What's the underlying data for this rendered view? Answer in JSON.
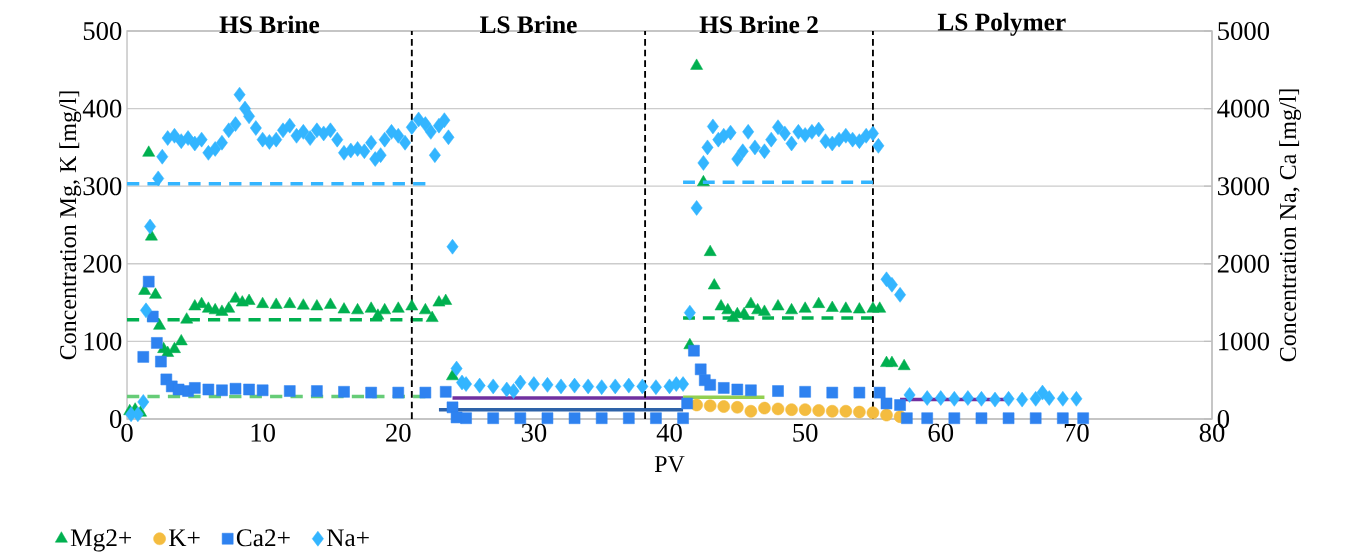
{
  "chart_data": {
    "type": "scatter",
    "xlabel": "PV",
    "ylabel": "Concentration Mg, K [mg/l]",
    "y2label": "Concentration Na, Ca [mg/l]",
    "xlim": [
      0,
      80
    ],
    "xticks": [
      0,
      10,
      20,
      30,
      40,
      50,
      60,
      70,
      80
    ],
    "ylim": [
      0,
      500
    ],
    "yticks": [
      0,
      100,
      200,
      300,
      400,
      500
    ],
    "y2lim": [
      0,
      5000
    ],
    "y2ticks": [
      0,
      1000,
      2000,
      3000,
      4000,
      5000
    ],
    "grid": "y",
    "legend": "bottom left",
    "ref_lines": [
      {
        "axis": "x",
        "value": 21,
        "color": "#000000",
        "line_style": "dashed"
      },
      {
        "axis": "x",
        "value": 38.2,
        "color": "#000000",
        "line_style": "dashed"
      },
      {
        "axis": "x",
        "value": 55,
        "color": "#000000",
        "line_style": "dashed"
      }
    ],
    "annotations": [
      "HS Brine",
      "LS Brine",
      "HS Brine 2",
      "LS Polymer"
    ],
    "series": [
      {
        "name": "Mg2+",
        "color": "#00b050",
        "marker": "triangle",
        "x": [
          0.2,
          0.6,
          1.0,
          1.3,
          1.6,
          1.8,
          2.1,
          2.4,
          2.7,
          3.0,
          3.5,
          4.0,
          4.4,
          5.0,
          5.5,
          6.0,
          6.5,
          7.0,
          7.5,
          8.0,
          8.5,
          9.0,
          10,
          11,
          12,
          13,
          14,
          15,
          16,
          17,
          18,
          18.5,
          19,
          20,
          21,
          22,
          22.5,
          23,
          23.5,
          24,
          41.5,
          42,
          42.5,
          43,
          43.3,
          43.8,
          44.3,
          44.7,
          45,
          45.5,
          46,
          46.5,
          47,
          48,
          49,
          50,
          51,
          52,
          53,
          54,
          55,
          55.5,
          56,
          56.4,
          57.3
        ],
        "values": [
          10,
          12,
          8,
          165,
          343,
          235,
          160,
          120,
          90,
          85,
          90,
          100,
          128,
          145,
          148,
          142,
          140,
          138,
          142,
          155,
          150,
          152,
          148,
          147,
          148,
          146,
          145,
          147,
          141,
          140,
          142,
          133,
          140,
          142,
          145,
          140,
          130,
          150,
          152,
          55,
          95,
          455,
          305,
          215,
          172,
          145,
          140,
          130,
          135,
          135,
          148,
          140,
          138,
          145,
          140,
          142,
          148,
          143,
          142,
          141,
          142,
          142,
          72,
          72,
          68
        ]
      },
      {
        "name": "K+",
        "color": "#f4bc3f",
        "marker": "circle",
        "x": [
          42,
          43,
          44,
          45,
          46,
          47,
          48,
          49,
          50,
          51,
          52,
          53,
          54,
          55,
          56,
          57
        ],
        "values": [
          18,
          17,
          16,
          15,
          10,
          14,
          13,
          12,
          12,
          11,
          10,
          10,
          9,
          8,
          5,
          3
        ]
      },
      {
        "name": "Ca2+",
        "color": "#2e82f0",
        "marker": "square",
        "axis": "y2",
        "x": [
          1.2,
          1.6,
          1.9,
          2.2,
          2.5,
          2.9,
          3.3,
          3.8,
          4.5,
          5,
          6,
          7,
          8,
          9,
          10,
          12,
          14,
          16,
          18,
          20,
          22,
          23.5,
          24,
          24.3,
          25,
          27,
          29,
          31,
          33,
          35,
          37,
          39,
          41,
          41.3,
          41.8,
          42.3,
          42.6,
          43,
          44,
          45,
          46,
          48,
          50,
          52,
          54,
          55.5,
          56,
          57,
          57.5,
          59,
          61,
          63,
          65,
          67,
          69,
          70.5
        ],
        "values": [
          800,
          1770,
          1320,
          980,
          740,
          510,
          420,
          380,
          360,
          400,
          380,
          370,
          390,
          380,
          370,
          360,
          360,
          350,
          340,
          340,
          340,
          350,
          150,
          20,
          10,
          10,
          10,
          10,
          10,
          10,
          10,
          10,
          10,
          200,
          880,
          640,
          500,
          440,
          400,
          380,
          370,
          360,
          350,
          340,
          340,
          340,
          200,
          180,
          10,
          10,
          10,
          10,
          10,
          10,
          10,
          10
        ]
      },
      {
        "name": "Na+",
        "color": "#33b5ff",
        "marker": "diamond",
        "axis": "y2",
        "x": [
          0.3,
          0.8,
          1.2,
          1.4,
          1.7,
          2.3,
          2.6,
          3,
          3.5,
          4,
          4.5,
          5,
          5.5,
          6,
          6.5,
          7,
          7.5,
          8,
          8.3,
          8.7,
          9,
          9.5,
          10,
          10.5,
          11,
          11.5,
          12,
          12.5,
          13,
          13.5,
          14,
          14.5,
          15,
          15.5,
          16,
          16.5,
          17,
          17.5,
          18,
          18.3,
          18.7,
          19,
          19.5,
          20,
          20.5,
          21,
          21.5,
          22,
          22.4,
          22.7,
          23,
          23.4,
          23.7,
          24,
          24.3,
          24.7,
          25,
          26,
          27,
          28,
          28.5,
          29,
          30,
          31,
          32,
          33,
          34,
          35,
          36,
          37,
          38,
          39,
          40,
          40.5,
          41,
          41.5,
          42,
          42.5,
          42.8,
          43.2,
          43.6,
          44,
          44.5,
          45,
          45.4,
          45.8,
          46.3,
          47,
          47.5,
          48,
          48.5,
          49,
          49.5,
          50,
          50.5,
          51,
          51.5,
          52,
          52.5,
          53,
          53.5,
          54,
          54.5,
          55,
          55.4,
          56,
          56.4,
          57,
          57.7,
          59,
          60,
          61,
          62,
          63,
          64,
          65,
          66,
          67,
          67.5,
          68,
          69,
          70
        ],
        "values": [
          60,
          60,
          220,
          1400,
          2480,
          3100,
          3380,
          3620,
          3650,
          3580,
          3620,
          3550,
          3600,
          3430,
          3480,
          3560,
          3720,
          3800,
          4180,
          4000,
          3900,
          3750,
          3600,
          3570,
          3600,
          3720,
          3780,
          3650,
          3700,
          3620,
          3720,
          3680,
          3720,
          3600,
          3430,
          3460,
          3480,
          3450,
          3560,
          3350,
          3400,
          3600,
          3700,
          3650,
          3560,
          3760,
          3860,
          3800,
          3700,
          3400,
          3780,
          3850,
          3630,
          2220,
          650,
          470,
          450,
          430,
          420,
          380,
          360,
          470,
          450,
          440,
          420,
          430,
          420,
          410,
          420,
          430,
          420,
          410,
          420,
          450,
          450,
          1370,
          2720,
          3300,
          3500,
          3770,
          3600,
          3650,
          3690,
          3350,
          3450,
          3700,
          3500,
          3450,
          3600,
          3760,
          3680,
          3550,
          3700,
          3660,
          3700,
          3730,
          3580,
          3550,
          3600,
          3650,
          3600,
          3580,
          3650,
          3680,
          3520,
          1800,
          1730,
          1600,
          310,
          270,
          270,
          260,
          270,
          260,
          250,
          260,
          250,
          260,
          340,
          270,
          260,
          260
        ]
      },
      {
        "type": "line",
        "color": "#33b5ff",
        "line_style": "dashed",
        "axis": "y2",
        "x": [
          0,
          22
        ],
        "values": [
          3030,
          3030
        ]
      },
      {
        "type": "line",
        "color": "#33b5ff",
        "line_style": "dashed",
        "axis": "y2",
        "x": [
          41,
          55
        ],
        "values": [
          3050,
          3050
        ]
      },
      {
        "type": "line",
        "color": "#00b050",
        "line_style": "dashed",
        "x": [
          0,
          21.8
        ],
        "values": [
          128,
          128
        ]
      },
      {
        "type": "line",
        "color": "#00b050",
        "line_style": "dashed",
        "x": [
          41,
          55
        ],
        "values": [
          130,
          130
        ]
      },
      {
        "type": "line",
        "color": "#66cc77",
        "line_style": "dashed",
        "x": [
          0,
          22
        ],
        "values": [
          29,
          29
        ]
      },
      {
        "type": "line",
        "color": "#7030a0",
        "line_style": "solid",
        "x": [
          24,
          41
        ],
        "values": [
          27,
          27
        ]
      },
      {
        "type": "line",
        "color": "#2e62a8",
        "line_style": "solid",
        "x": [
          23,
          41
        ],
        "values": [
          12,
          12
        ]
      },
      {
        "type": "line",
        "color": "#92d050",
        "line_style": "solid",
        "x": [
          41,
          47
        ],
        "values": [
          28,
          28
        ]
      },
      {
        "type": "line",
        "color": "#7030a0",
        "line_style": "solid",
        "x": [
          57,
          65
        ],
        "values": [
          25,
          25
        ]
      }
    ]
  }
}
